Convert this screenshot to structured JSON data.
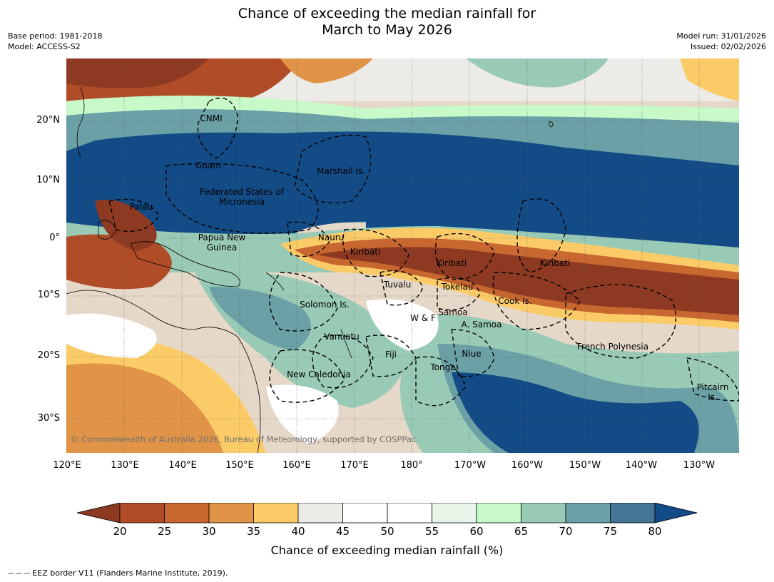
{
  "title_line1": "Chance of exceeding the median rainfall for",
  "title_line2": "March to May 2026",
  "meta_left": [
    "Base period: 1981-2018",
    "Model: ACCESS-S2"
  ],
  "meta_right": [
    "Model run: 31/01/2026",
    "Issued: 02/02/2026"
  ],
  "lat_labels": [
    "20°N",
    "10°N",
    "0°",
    "10°S",
    "20°S",
    "30°S"
  ],
  "lon_labels": [
    "120°E",
    "130°E",
    "140°E",
    "150°E",
    "160°E",
    "170°E",
    "180°",
    "170°W",
    "160°W",
    "150°W",
    "140°W",
    "130°W"
  ],
  "places": [
    {
      "name": "CNMI"
    },
    {
      "name": "Guam"
    },
    {
      "name": "Marshall Is."
    },
    {
      "name": "Federated States of Micronesia"
    },
    {
      "name": "Palau"
    },
    {
      "name": "Papua New Guinea"
    },
    {
      "name": "Nauru"
    },
    {
      "name": "Kiribati"
    },
    {
      "name": "Kiribati"
    },
    {
      "name": "Kiribati"
    },
    {
      "name": "Tuvalu"
    },
    {
      "name": "Tokelau"
    },
    {
      "name": "Cook Is."
    },
    {
      "name": "Solomon Is."
    },
    {
      "name": "Samoa"
    },
    {
      "name": "W & F"
    },
    {
      "name": "A. Samoa"
    },
    {
      "name": "Vanuatu"
    },
    {
      "name": "Fiji"
    },
    {
      "name": "Niue"
    },
    {
      "name": "French Polynesia"
    },
    {
      "name": "Tonga"
    },
    {
      "name": "New Caledonia"
    },
    {
      "name": "Pitcairn Is."
    }
  ],
  "copyright": "© Commonwealth of Australia 2026, Bureau of Meteorology, supported by COSPPac",
  "colorbar": {
    "ticks": [
      "20",
      "25",
      "30",
      "35",
      "40",
      "45",
      "50",
      "55",
      "60",
      "65",
      "70",
      "75",
      "80"
    ],
    "colors": [
      "#8e3a22",
      "#b04d28",
      "#c96731",
      "#e19447",
      "#fbcb68",
      "#ecebe7",
      "#ffffff",
      "#ffffff",
      "#e9f5e9",
      "#c8f9c8",
      "#99cab6",
      "#6aa0a6",
      "#447597",
      "#134b86"
    ],
    "title": "Chance of exceeding median rainfall (%)"
  },
  "footnote": "--  --  -- EEZ border V11 (Flanders Marine Institute, 2019)."
}
